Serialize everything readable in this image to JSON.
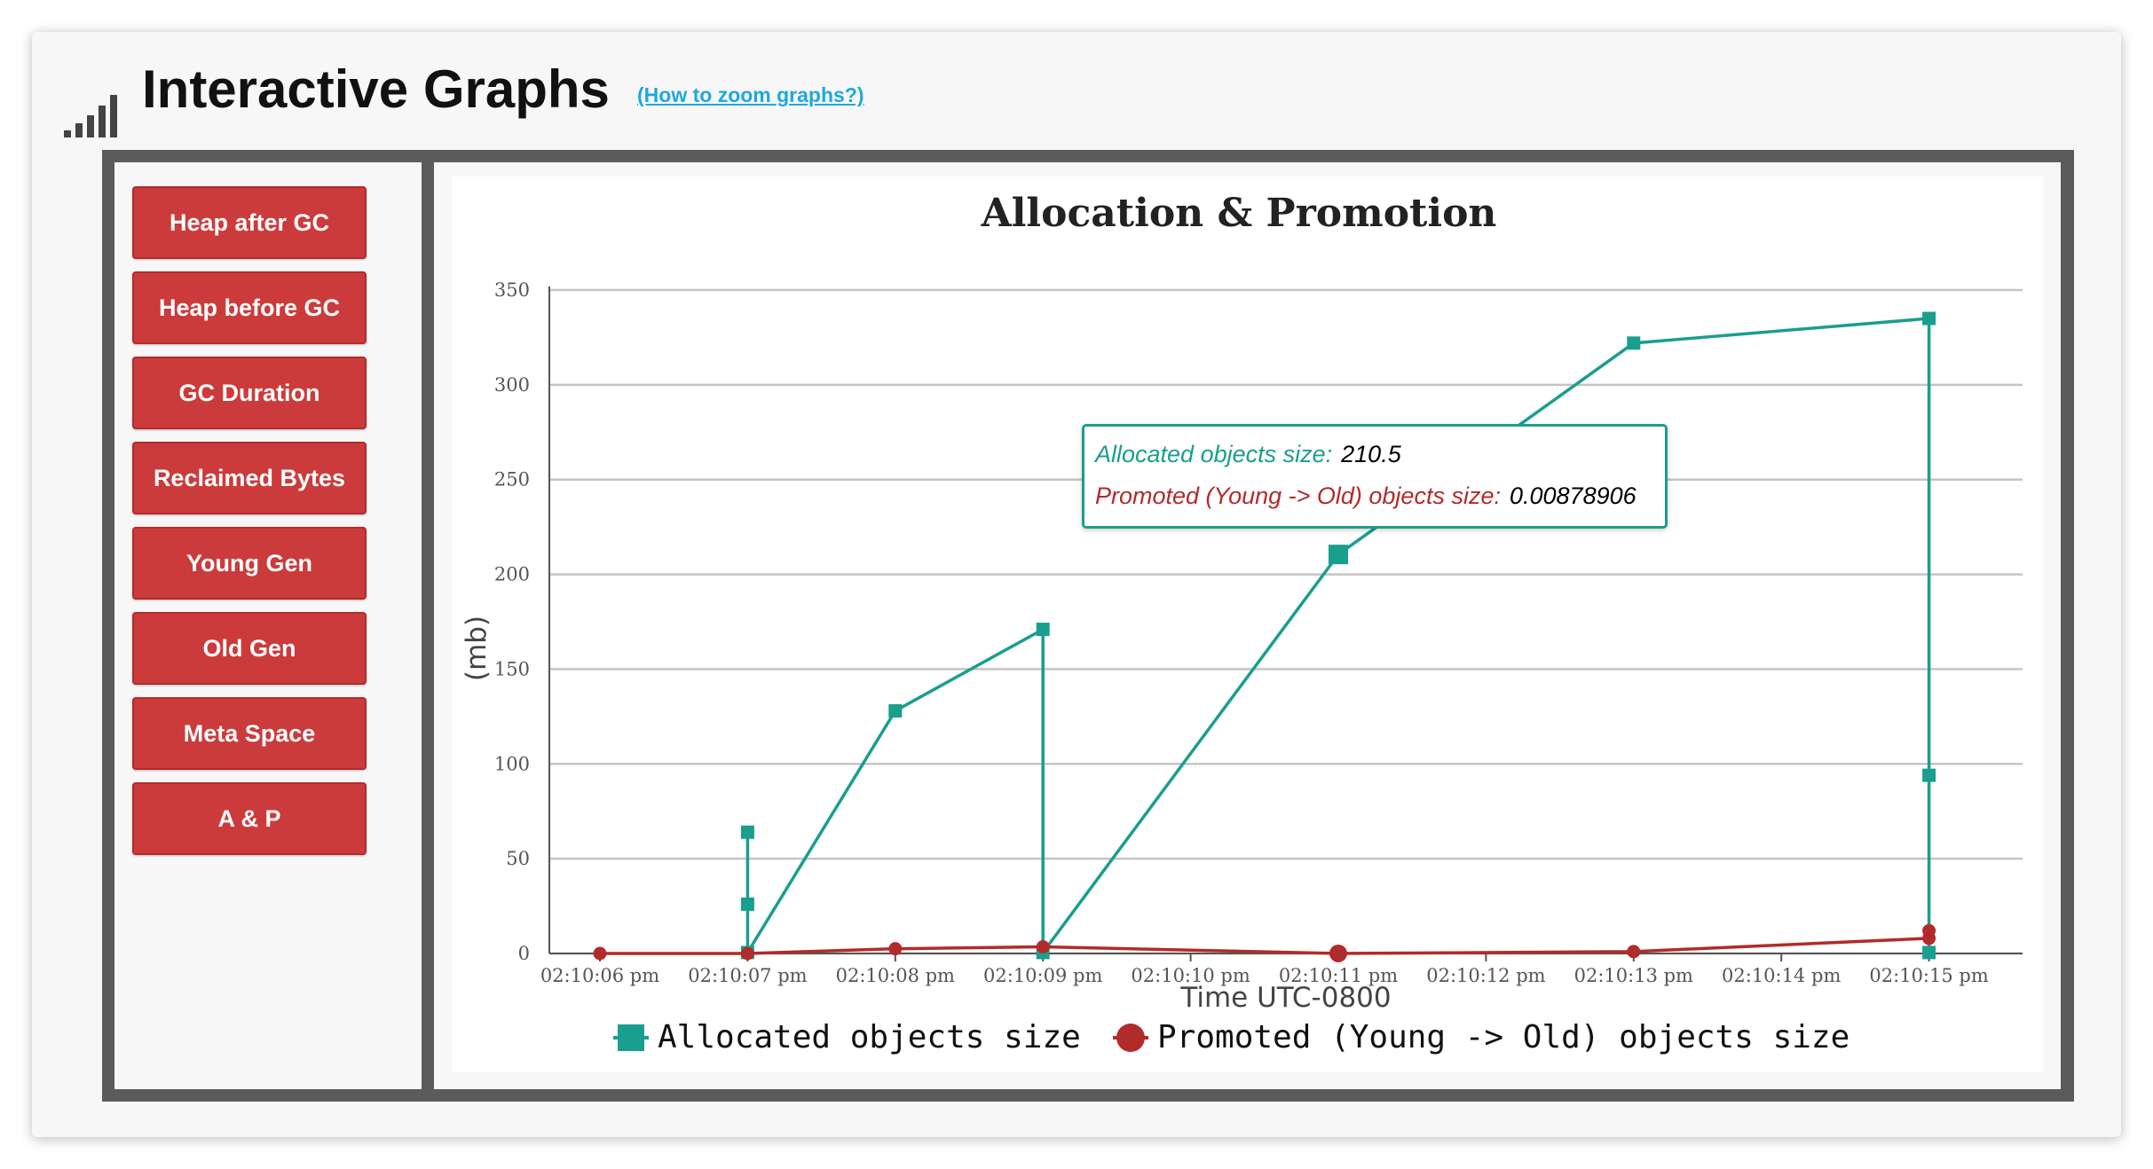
{
  "header": {
    "title": "Interactive Graphs",
    "zoom_link": "(How to zoom graphs?)"
  },
  "sidebar": {
    "buttons": [
      "Heap after GC",
      "Heap before GC",
      "GC Duration",
      "Reclaimed Bytes",
      "Young Gen",
      "Old Gen",
      "Meta Space",
      "A & P"
    ]
  },
  "colors": {
    "button": "#cc3b3b",
    "series_allocated": "#1a9e8e",
    "series_promoted": "#b22b2b",
    "link": "#1ea8e0",
    "frame": "#5b5b5b"
  },
  "tooltip": {
    "allocated_label": "Allocated objects size:",
    "allocated_value": "210.5",
    "promoted_label": "Promoted (Young -> Old) objects size:",
    "promoted_value": "0.00878906"
  },
  "chart_data": {
    "type": "line",
    "title": "Allocation & Promotion",
    "xlabel": "Time UTC-0800",
    "ylabel": "(mb)",
    "ylim": [
      0,
      350
    ],
    "yticks": [
      0,
      50,
      100,
      150,
      200,
      250,
      300,
      350
    ],
    "xlim": [
      0,
      9
    ],
    "xticks": [
      "02:10:06 pm",
      "02:10:07 pm",
      "02:10:08 pm",
      "02:10:09 pm",
      "02:10:10 pm",
      "02:10:11 pm",
      "02:10:12 pm",
      "02:10:13 pm",
      "02:10:14 pm",
      "02:10:15 pm"
    ],
    "grid": true,
    "legend_position": "bottom",
    "series": [
      {
        "name": "Allocated objects size",
        "marker": "square",
        "color": "#1a9e8e",
        "x": [
          1,
          1,
          1,
          2,
          3,
          3,
          5,
          7,
          9,
          9,
          9
        ],
        "values": [
          64,
          26,
          0.5,
          128,
          171,
          0.5,
          210.5,
          322,
          335,
          94,
          0.5
        ]
      },
      {
        "name": "Promoted (Young -> Old) objects size",
        "marker": "circle",
        "color": "#b22b2b",
        "x": [
          0,
          1,
          2,
          3,
          5,
          7,
          9,
          9
        ],
        "values": [
          0,
          0,
          2.5,
          3.5,
          0.00878906,
          1,
          8,
          12
        ]
      }
    ],
    "highlight_index": 6
  }
}
